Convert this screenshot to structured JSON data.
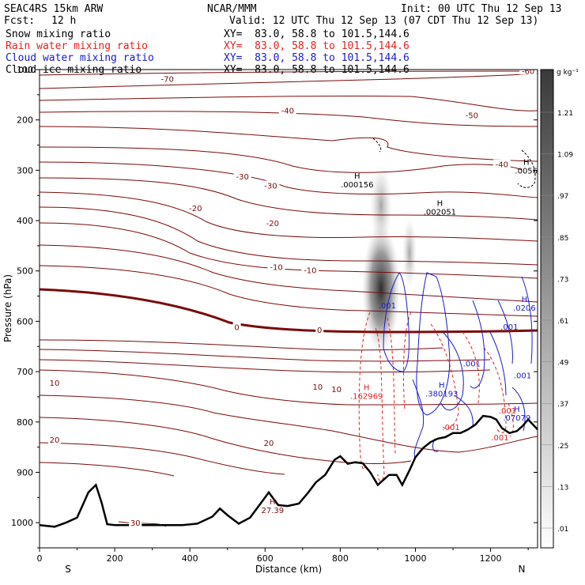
{
  "header": {
    "model": "SEAC4RS 15km ARW",
    "org": "NCAR/MMM",
    "init": "Init: 00 UTC Thu 12 Sep 13",
    "fcst_label": "Fcst:",
    "fcst_value": "12 h",
    "valid": "Valid: 12 UTC Thu 12 Sep 13 (07 CDT Thu 12 Sep 13)"
  },
  "fields": [
    {
      "label": "Snow mixing ratio",
      "xy": "XY=  83.0, 58.8 to 101.5,144.6",
      "color": "#000000"
    },
    {
      "label": "Rain water mixing ratio",
      "xy": "XY=  83.0, 58.8 to 101.5,144.6",
      "color": "#e8201e"
    },
    {
      "label": "Cloud water mixing ratio",
      "xy": "XY=  83.0, 58.8 to 101.5,144.6",
      "color": "#1a1ad0"
    },
    {
      "label": "Cloud ice mixing ratio",
      "xy": "XY=  83.0, 58.8 to 101.5,144.6",
      "color": "#000000"
    }
  ],
  "colors": {
    "isotherm": "#7a0a0a",
    "rain": "#e8201e",
    "cloud": "#1a1ad0",
    "terrain": "#000000"
  },
  "chart_data": {
    "type": "contour",
    "xlabel": "Distance (km)",
    "ylabel": "Pressure (hPa)",
    "xlim": [
      0,
      1325
    ],
    "ylim": [
      1050,
      100
    ],
    "x_ticks": [
      "0",
      "200",
      "400",
      "600",
      "800",
      "1000",
      "1200"
    ],
    "y_ticks": [
      "100",
      "200",
      "300",
      "400",
      "500",
      "600",
      "700",
      "800",
      "900",
      "1000"
    ],
    "y_tick_values": [
      100,
      200,
      300,
      400,
      500,
      600,
      700,
      800,
      900,
      1000
    ],
    "left_end": "S",
    "right_end": "N",
    "colorbar": {
      "unit": "g kg⁻¹",
      "labels": [
        "1.21",
        "1.09",
        ".97",
        ".85",
        ".73",
        ".61",
        ".49",
        ".37",
        ".25",
        ".13",
        ".01"
      ]
    },
    "isotherm_labels": [
      {
        "text": "-70",
        "x": 340,
        "p": 118
      },
      {
        "text": "-60",
        "x": 1300,
        "p": 102
      },
      {
        "text": "-50",
        "x": 1150,
        "p": 190
      },
      {
        "text": "-40",
        "x": 660,
        "p": 181
      },
      {
        "text": "-40",
        "x": 1230,
        "p": 288
      },
      {
        "text": "-30",
        "x": 540,
        "p": 312
      },
      {
        "text": "-30",
        "x": 615,
        "p": 330
      },
      {
        "text": "-20",
        "x": 415,
        "p": 375
      },
      {
        "text": "-20",
        "x": 620,
        "p": 405
      },
      {
        "text": "-10",
        "x": 630,
        "p": 492
      },
      {
        "text": "-10",
        "x": 720,
        "p": 498
      },
      {
        "text": "0",
        "x": 525,
        "p": 611
      },
      {
        "text": "0",
        "x": 745,
        "p": 617
      },
      {
        "text": "10",
        "x": 40,
        "p": 722
      },
      {
        "text": "10",
        "x": 740,
        "p": 730
      },
      {
        "text": "10",
        "x": 790,
        "p": 734
      },
      {
        "text": "20",
        "x": 40,
        "p": 835
      },
      {
        "text": "20",
        "x": 610,
        "p": 841
      },
      {
        "text": "30",
        "x": 255,
        "p": 1000
      }
    ],
    "maxima": [
      {
        "text": "H",
        "value": ".000156",
        "x": 845,
        "p": 320,
        "color": "#000000"
      },
      {
        "text": "H",
        "value": ".002051",
        "x": 1065,
        "p": 374,
        "color": "#000000"
      },
      {
        "text": "H",
        "value": ".0056",
        "x": 1295,
        "p": 292,
        "color": "#000000"
      },
      {
        "text": "H",
        "value": ".0206",
        "x": 1290,
        "p": 565,
        "color": "#1a1ad0"
      },
      {
        "text": "H",
        "value": ".162969",
        "x": 870,
        "p": 740,
        "color": "#e8201e"
      },
      {
        "text": "H",
        "value": ".380193",
        "x": 1070,
        "p": 735,
        "color": "#1a1ad0"
      },
      {
        "text": "H",
        "value": ".07079",
        "x": 1270,
        "p": 783,
        "color": "#1a1ad0"
      },
      {
        "text": "H",
        "value": "27.39",
        "x": 620,
        "p": 967,
        "color": "#7a0a0a"
      }
    ],
    "contour_labels": [
      {
        "text": ".001",
        "x": 925,
        "p": 568,
        "color": "#1a1ad0"
      },
      {
        "text": ".001",
        "x": 1250,
        "p": 610,
        "color": "#1a1ad0"
      },
      {
        "text": ".001",
        "x": 1150,
        "p": 683,
        "color": "#1a1ad0"
      },
      {
        "text": ".001",
        "x": 1285,
        "p": 707,
        "color": "#1a1ad0"
      },
      {
        "text": ".001",
        "x": 1245,
        "p": 777,
        "color": "#e8201e"
      },
      {
        "text": ".001",
        "x": 1095,
        "p": 810,
        "color": "#e8201e"
      },
      {
        "text": ".001",
        "x": 1225,
        "p": 830,
        "color": "#e8201e"
      }
    ],
    "terrain": {
      "x": [
        0,
        40,
        70,
        100,
        130,
        150,
        165,
        180,
        200,
        260,
        320,
        380,
        420,
        460,
        480,
        500,
        530,
        560,
        590,
        610,
        635,
        660,
        690,
        715,
        735,
        760,
        785,
        800,
        820,
        840,
        860,
        880,
        900,
        915,
        930,
        950,
        965,
        985,
        1000,
        1020,
        1040,
        1060,
        1080,
        1100,
        1120,
        1140,
        1160,
        1180,
        1200,
        1215,
        1230,
        1250,
        1270,
        1285,
        1300,
        1325
      ],
      "p": [
        1005,
        1008,
        1000,
        990,
        940,
        925,
        960,
        1003,
        1005,
        1005,
        1005,
        1005,
        1002,
        988,
        972,
        985,
        1002,
        990,
        960,
        940,
        965,
        967,
        962,
        940,
        920,
        905,
        875,
        868,
        883,
        880,
        882,
        900,
        925,
        915,
        905,
        905,
        925,
        895,
        870,
        852,
        840,
        833,
        830,
        822,
        822,
        815,
        805,
        788,
        790,
        795,
        812,
        822,
        818,
        808,
        795,
        815
      ]
    }
  }
}
